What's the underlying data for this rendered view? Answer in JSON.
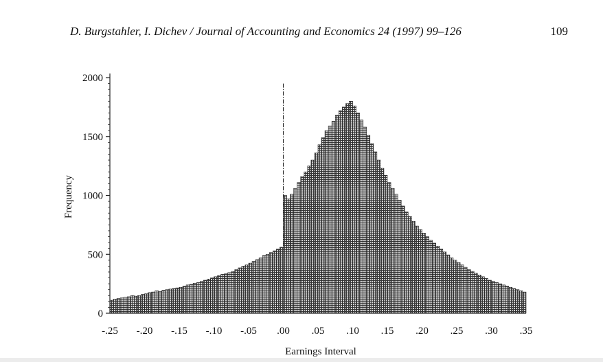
{
  "header": {
    "citation": "D. Burgstahler, I. Dichev / Journal of Accounting and Economics 24 (1997) 99–126",
    "page_number": "109"
  },
  "colors": {
    "bar_fill": "#8f8f8f",
    "bar_edge": "#1e1e1e",
    "axis": "#222222"
  },
  "chart_data": {
    "type": "bar",
    "title": "",
    "xlabel": "Earnings Interval",
    "ylabel": "Frequency",
    "bin_width": 0.005,
    "xlim": [
      -0.25,
      0.35
    ],
    "ylim": [
      0,
      2000
    ],
    "grid": false,
    "legend": "none",
    "x_ticks": [
      {
        "value": -0.25,
        "label": "-.25"
      },
      {
        "value": -0.2,
        "label": "-.20"
      },
      {
        "value": -0.15,
        "label": "-.15"
      },
      {
        "value": -0.1,
        "label": "-.10"
      },
      {
        "value": -0.05,
        "label": "-.05"
      },
      {
        "value": 0.0,
        "label": ".00"
      },
      {
        "value": 0.05,
        "label": ".05"
      },
      {
        "value": 0.1,
        "label": ".10"
      },
      {
        "value": 0.15,
        "label": ".15"
      },
      {
        "value": 0.2,
        "label": ".20"
      },
      {
        "value": 0.25,
        "label": ".25"
      },
      {
        "value": 0.3,
        "label": ".30"
      },
      {
        "value": 0.35,
        "label": ".35"
      }
    ],
    "y_ticks": [
      {
        "value": 0,
        "label": "0"
      },
      {
        "value": 500,
        "label": "500"
      },
      {
        "value": 1000,
        "label": "1000"
      },
      {
        "value": 1500,
        "label": "1500"
      },
      {
        "value": 2000,
        "label": "2000"
      }
    ],
    "reference_line": {
      "x": 0.0,
      "y_top": 1950,
      "style": "dash-dot"
    },
    "values": [
      110,
      120,
      125,
      130,
      135,
      140,
      150,
      145,
      150,
      160,
      165,
      175,
      180,
      190,
      185,
      195,
      200,
      205,
      210,
      215,
      220,
      230,
      240,
      245,
      255,
      260,
      270,
      280,
      290,
      300,
      310,
      320,
      330,
      335,
      345,
      355,
      370,
      385,
      400,
      410,
      425,
      440,
      455,
      470,
      490,
      500,
      515,
      530,
      545,
      560,
      1000,
      970,
      1010,
      1060,
      1110,
      1160,
      1200,
      1250,
      1300,
      1360,
      1430,
      1490,
      1550,
      1590,
      1630,
      1680,
      1720,
      1750,
      1780,
      1800,
      1760,
      1700,
      1640,
      1580,
      1510,
      1440,
      1370,
      1300,
      1230,
      1170,
      1110,
      1060,
      1010,
      960,
      910,
      860,
      820,
      780,
      740,
      710,
      680,
      650,
      620,
      595,
      570,
      545,
      520,
      495,
      470,
      450,
      430,
      410,
      390,
      370,
      355,
      340,
      325,
      310,
      295,
      280,
      270,
      260,
      250,
      240,
      230,
      220,
      210,
      200,
      190,
      180
    ]
  }
}
